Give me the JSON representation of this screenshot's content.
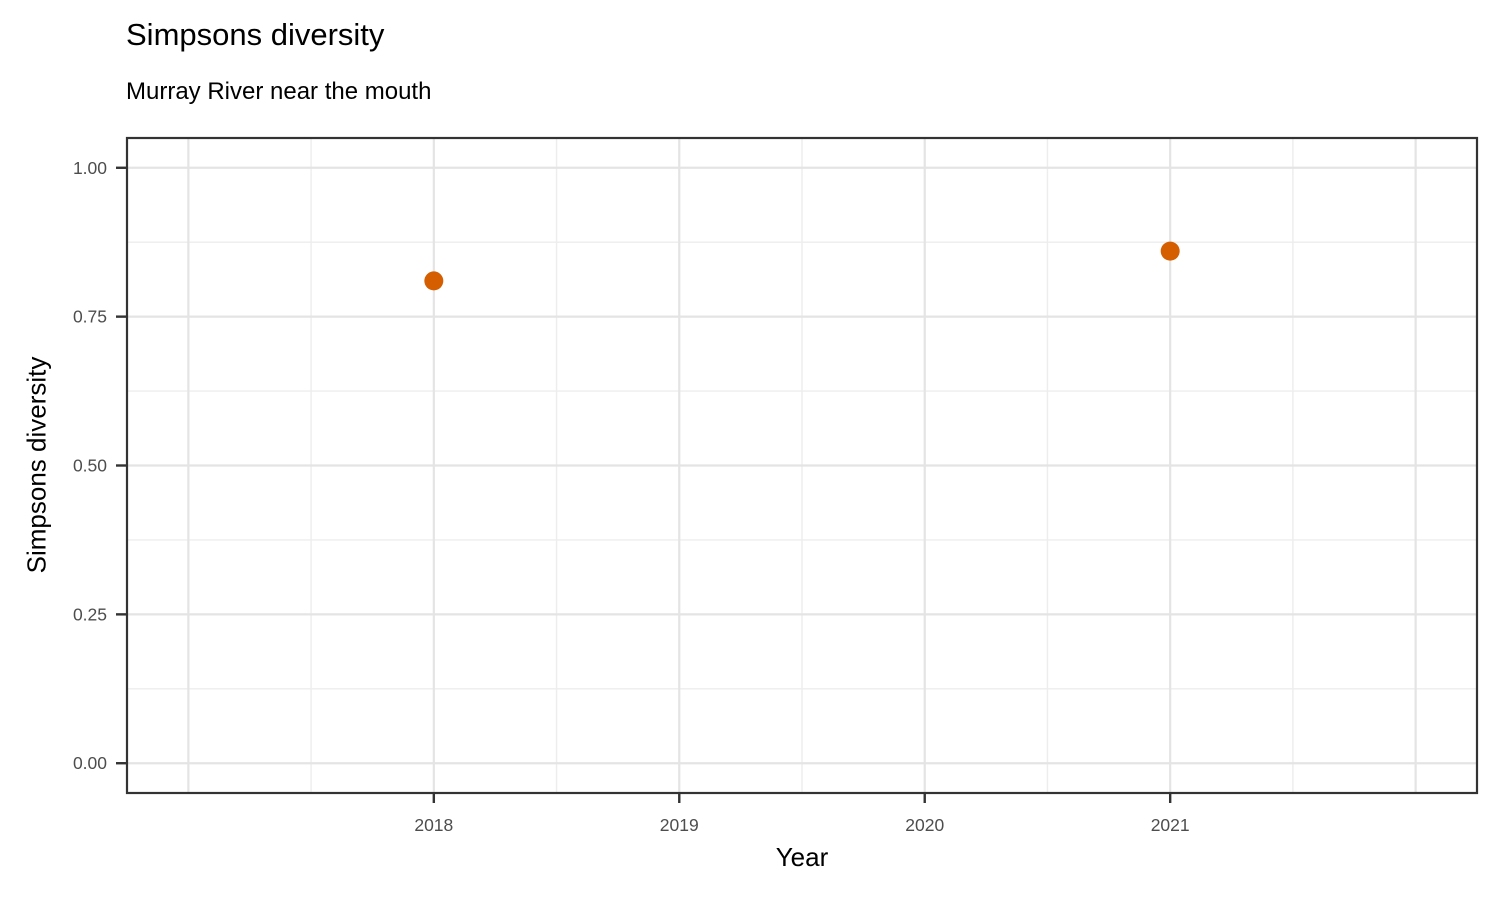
{
  "figure": {
    "title": "Simpsons diversity",
    "subtitle": "Murray River near the mouth"
  },
  "chart_data": {
    "type": "scatter",
    "title": "Simpsons diversity",
    "subtitle": "Murray River near the mouth",
    "xlabel": "Year",
    "ylabel": "Simpsons diversity",
    "series": [
      {
        "name": "Simpsons diversity",
        "points": [
          {
            "x": 2018,
            "y": 0.81
          },
          {
            "x": 2021,
            "y": 0.86
          }
        ]
      }
    ],
    "xlim": [
      2016.75,
      2022.25
    ],
    "ylim": [
      -0.05,
      1.05
    ],
    "x_ticks": {
      "values": [
        2018,
        2019,
        2020,
        2021
      ],
      "labels": [
        "2018",
        "2019",
        "2020",
        "2021"
      ]
    },
    "y_ticks": {
      "values": [
        0,
        0.25,
        0.5,
        0.75,
        1
      ],
      "labels": [
        "0.00",
        "0.25",
        "0.50",
        "0.75",
        "1.00"
      ]
    },
    "x_major_gridlines": [
      2017,
      2018,
      2019,
      2020,
      2021,
      2022
    ],
    "x_minor_gridlines": [
      2017.5,
      2018.5,
      2019.5,
      2020.5,
      2021.5
    ],
    "y_major_gridlines": [
      0,
      0.25,
      0.5,
      0.75,
      1
    ],
    "y_minor_gridlines": [
      0.125,
      0.375,
      0.625,
      0.875
    ],
    "grid": true,
    "legend": "none",
    "point_radius": 9.5,
    "colors": {
      "point": "#D55E00",
      "grid_major": "#E4E4E4",
      "grid_minor": "#EDEDED",
      "panel_border": "#333333",
      "tick": "#333333",
      "tick_label": "#4D4D4D",
      "text": "#000000",
      "background": "#FFFFFF"
    }
  }
}
